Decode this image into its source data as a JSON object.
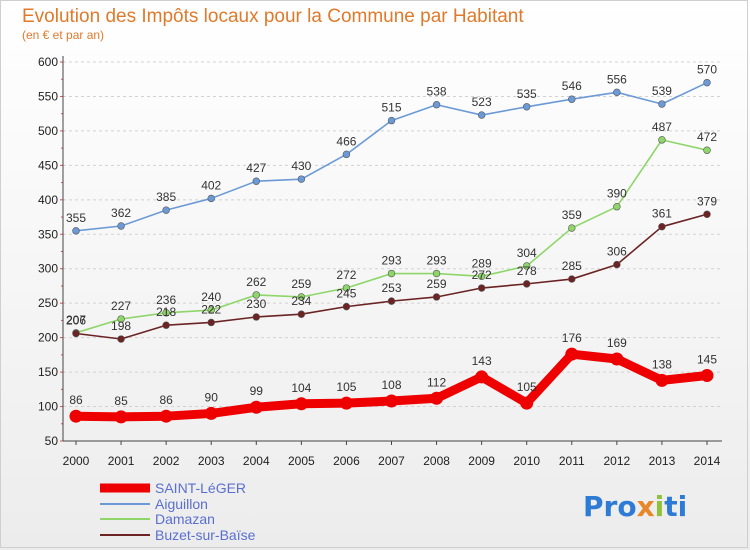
{
  "chart_data": {
    "type": "line",
    "title": "Evolution des Impôts locaux pour la Commune par Habitant",
    "subtitle": "(en € et par an)",
    "x": [
      "2000",
      "2001",
      "2002",
      "2003",
      "2004",
      "2005",
      "2006",
      "2007",
      "2008",
      "2009",
      "2010",
      "2011",
      "2012",
      "2013",
      "2014"
    ],
    "yticks": [
      50,
      100,
      150,
      200,
      250,
      300,
      350,
      400,
      450,
      500,
      550,
      600
    ],
    "ylim": [
      50,
      600
    ],
    "grid": "horizontal dashed",
    "series": [
      {
        "name": "SAINT-LéGER",
        "color": "#ee0000",
        "values": [
          86,
          85,
          86,
          90,
          99,
          104,
          105,
          108,
          112,
          143,
          105,
          176,
          169,
          138,
          145
        ]
      },
      {
        "name": "Aiguillon",
        "color": "#6b9ad6",
        "values": [
          355,
          362,
          385,
          402,
          427,
          430,
          466,
          515,
          538,
          523,
          535,
          546,
          556,
          539,
          570
        ]
      },
      {
        "name": "Damazan",
        "color": "#8ed66a",
        "values": [
          207,
          227,
          236,
          240,
          262,
          259,
          272,
          293,
          293,
          289,
          304,
          359,
          390,
          487,
          472
        ]
      },
      {
        "name": "Buzet-sur-Baïse",
        "color": "#6b2323",
        "values": [
          206,
          198,
          218,
          222,
          230,
          234,
          245,
          253,
          259,
          272,
          278,
          285,
          306,
          361,
          379
        ]
      }
    ],
    "legend": "bottom-left"
  },
  "logo": {
    "text": "Proxiti"
  }
}
